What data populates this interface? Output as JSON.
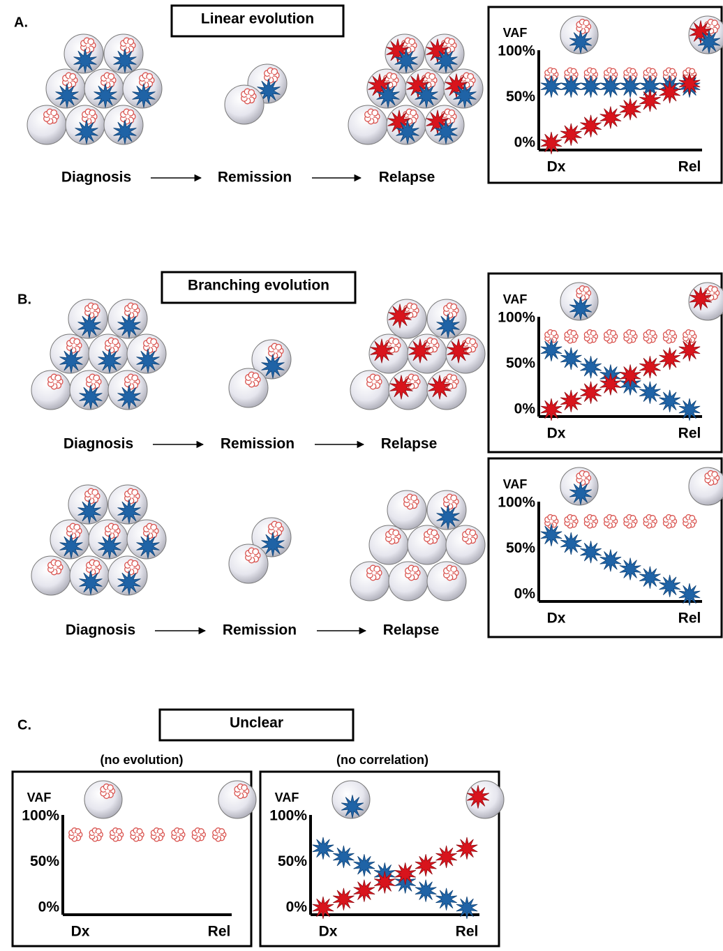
{
  "panels": [
    {
      "label": "A.",
      "title": "Linear evolution",
      "rows": [
        {
          "stages": [
            "Diagnosis",
            "Remission",
            "Relapse"
          ]
        }
      ],
      "plots": [
        {
          "y_label": "VAF",
          "y_ticks": [
            "100%",
            "50%",
            "0%"
          ],
          "x_labels": [
            "Dx",
            "Rel"
          ]
        }
      ]
    },
    {
      "label": "B.",
      "title": "Branching evolution",
      "rows": [
        {
          "stages": [
            "Diagnosis",
            "Remission",
            "Relapse"
          ]
        },
        {
          "stages": [
            "Diagnosis",
            "Remission",
            "Relapse"
          ]
        }
      ],
      "plots": [
        {
          "y_label": "VAF",
          "y_ticks": [
            "100%",
            "50%",
            "0%"
          ],
          "x_labels": [
            "Dx",
            "Rel"
          ]
        },
        {
          "y_label": "VAF",
          "y_ticks": [
            "100%",
            "50%",
            "0%"
          ],
          "x_labels": [
            "Dx",
            "Rel"
          ]
        }
      ]
    },
    {
      "label": "C.",
      "title": "Unclear",
      "plots": [
        {
          "caption": "(no evolution)",
          "y_label": "VAF",
          "y_ticks": [
            "100%",
            "50%",
            "0%"
          ],
          "x_labels": [
            "Dx",
            "Rel"
          ]
        },
        {
          "caption": "(no correlation)",
          "y_label": "VAF",
          "y_ticks": [
            "100%",
            "50%",
            "0%"
          ],
          "x_labels": [
            "Dx",
            "Rel"
          ]
        }
      ]
    }
  ]
}
